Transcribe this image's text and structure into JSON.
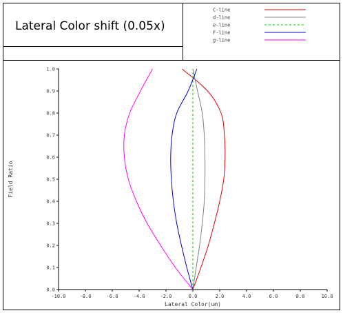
{
  "header": {
    "title": "Lateral Color shift (0.05x)"
  },
  "chart_data": {
    "type": "line",
    "title": "Lateral Color shift (0.05x)",
    "xlabel": "Lateral Color(um)",
    "ylabel": "Field Ratio",
    "xlim": [
      -10.0,
      10.0
    ],
    "ylim": [
      0.0,
      1.0
    ],
    "xticks": [
      "-10.0",
      "-8.0",
      "-6.0",
      "-4.0",
      "-2.0",
      "0.0",
      "2.0",
      "4.0",
      "6.0",
      "8.0",
      "10.0"
    ],
    "yticks": [
      "0.0",
      "0.1",
      "0.2",
      "0.3",
      "0.4",
      "0.5",
      "0.6",
      "0.7",
      "0.8",
      "0.9",
      "1.0"
    ],
    "grid": false,
    "legend_position": "top-right",
    "y": [
      0.0,
      0.1,
      0.2,
      0.3,
      0.4,
      0.5,
      0.6,
      0.7,
      0.8,
      0.9,
      1.0
    ],
    "series": [
      {
        "name": "C-line",
        "color": "#e00000",
        "dash": "solid",
        "x": [
          0.0,
          0.6,
          1.15,
          1.6,
          2.0,
          2.3,
          2.4,
          2.35,
          2.1,
          1.1,
          -0.8
        ]
      },
      {
        "name": "d-line",
        "color": "#808080",
        "dash": "solid",
        "x": [
          0.0,
          0.25,
          0.5,
          0.7,
          0.85,
          0.9,
          0.9,
          0.85,
          0.7,
          0.35,
          0.0
        ]
      },
      {
        "name": "e-line",
        "color": "#00c000",
        "dash": "dashed",
        "x": [
          0.0,
          0.0,
          0.0,
          0.0,
          0.0,
          0.0,
          0.0,
          0.0,
          0.0,
          0.0,
          0.0
        ]
      },
      {
        "name": "F-line",
        "color": "#0000d0",
        "dash": "solid",
        "x": [
          0.0,
          -0.45,
          -0.85,
          -1.2,
          -1.45,
          -1.6,
          -1.65,
          -1.55,
          -1.2,
          -0.35,
          0.3
        ]
      },
      {
        "name": "g-line",
        "color": "#ff00ff",
        "dash": "solid",
        "x": [
          0.0,
          -1.3,
          -2.4,
          -3.4,
          -4.2,
          -4.8,
          -5.1,
          -5.1,
          -4.7,
          -3.9,
          -3.0
        ]
      }
    ]
  }
}
